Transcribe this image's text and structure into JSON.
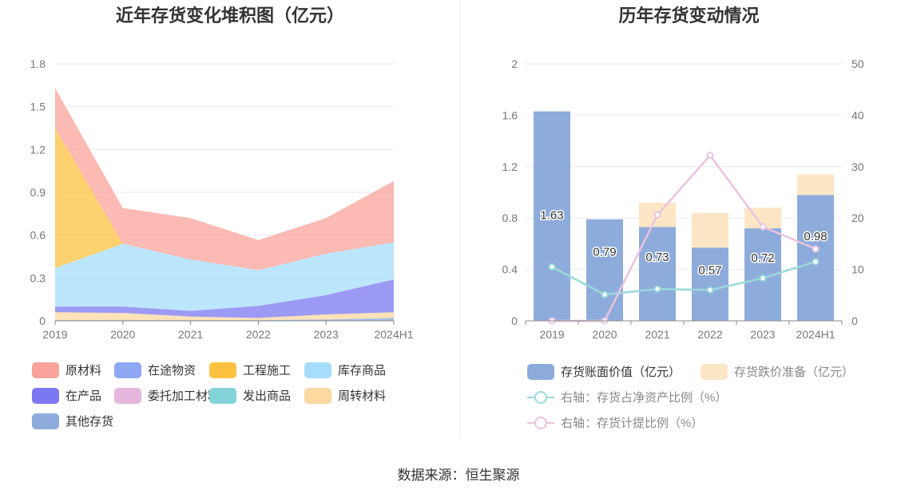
{
  "left_chart": {
    "title": "近年存货变化堆积图（亿元）",
    "legend": [
      {
        "name": "原材料",
        "color": "#f9a39a"
      },
      {
        "name": "在途物资",
        "color": "#8ea8f6"
      },
      {
        "name": "工程施工",
        "color": "#fcc23f"
      },
      {
        "name": "库存商品",
        "color": "#a6ddfb"
      },
      {
        "name": "在产品",
        "color": "#7c78f2"
      },
      {
        "name": "委托加工材料",
        "color": "#e7b6dd"
      },
      {
        "name": "发出商品",
        "color": "#82d4d8"
      },
      {
        "name": "周转材料",
        "color": "#fdd8a0"
      },
      {
        "name": "其他存货",
        "color": "#8eacdb"
      }
    ]
  },
  "right_chart": {
    "title": "历年存货变动情况",
    "legend": [
      {
        "name": "存货账面价值（亿元）",
        "color": "#8eacdb",
        "kind": "bar"
      },
      {
        "name": "存货跌价准备（亿元）",
        "color": "#fde6c6",
        "kind": "bar"
      },
      {
        "name": "右轴：存货占净资产比例（%）",
        "color": "#9ad9da",
        "kind": "line"
      },
      {
        "name": "右轴：存货计提比例（%）",
        "color": "#eac3df",
        "kind": "line"
      }
    ]
  },
  "source": "数据来源：恒生聚源",
  "chart_data": [
    {
      "type": "area",
      "stacked": true,
      "title": "近年存货变化堆积图（亿元）",
      "categories": [
        "2019",
        "2020",
        "2021",
        "2022",
        "2023",
        "2024H1"
      ],
      "ylim": [
        0,
        1.8
      ],
      "yticks": [
        "0",
        "0.3",
        "0.6",
        "0.9",
        "1.2",
        "1.5",
        "1.8"
      ],
      "grid": true,
      "legend_position": "bottom",
      "series": [
        {
          "name": "其他存货",
          "color": "#8eacdb",
          "values": [
            0.005,
            0.005,
            0.005,
            0.005,
            0.01,
            0.02
          ]
        },
        {
          "name": "周转材料",
          "color": "#fdd8a0",
          "values": [
            0.055,
            0.05,
            0.025,
            0.015,
            0.035,
            0.04
          ]
        },
        {
          "name": "发出商品",
          "color": "#82d4d8",
          "values": [
            0,
            0,
            0,
            0,
            0,
            0
          ]
        },
        {
          "name": "委托加工材料",
          "color": "#e7b6dd",
          "values": [
            0,
            0,
            0,
            0,
            0,
            0
          ]
        },
        {
          "name": "在产品",
          "color": "#7c78f2",
          "values": [
            0.04,
            0.045,
            0.04,
            0.085,
            0.135,
            0.23
          ]
        },
        {
          "name": "库存商品",
          "color": "#a6ddfb",
          "values": [
            0.27,
            0.44,
            0.36,
            0.25,
            0.29,
            0.26
          ]
        },
        {
          "name": "工程施工",
          "color": "#fcc23f",
          "values": [
            0.98,
            0,
            0,
            0,
            0,
            0
          ]
        },
        {
          "name": "在途物资",
          "color": "#8ea8f6",
          "values": [
            0,
            0,
            0,
            0,
            0,
            0
          ]
        },
        {
          "name": "原材料",
          "color": "#f9a39a",
          "values": [
            0.28,
            0.25,
            0.29,
            0.21,
            0.25,
            0.43
          ]
        }
      ]
    },
    {
      "type": "bar",
      "stacked": true,
      "title": "历年存货变动情况",
      "categories": [
        "2019",
        "2020",
        "2021",
        "2022",
        "2023",
        "2024H1"
      ],
      "ylim": [
        0,
        2
      ],
      "yticks": [
        "0",
        "0.4",
        "0.8",
        "1.2",
        "1.6",
        "2"
      ],
      "y2lim": [
        0,
        50
      ],
      "y2ticks": [
        "0",
        "10",
        "20",
        "30",
        "40",
        "50"
      ],
      "grid": true,
      "legend_position": "bottom",
      "series": [
        {
          "name": "存货账面价值（亿元）",
          "color": "#8eacdb",
          "axis": "left",
          "values": [
            1.63,
            0.79,
            0.73,
            0.57,
            0.72,
            0.98
          ],
          "labels": [
            "1.63",
            "0.79",
            "0.73",
            "0.57",
            "0.72",
            "0.98"
          ]
        },
        {
          "name": "存货跌价准备（亿元）",
          "color": "#fde6c6",
          "axis": "left",
          "values": [
            0,
            0,
            0.19,
            0.27,
            0.16,
            0.16
          ]
        },
        {
          "name": "右轴：存货占净资产比例（%）",
          "color": "#9ad9da",
          "type": "line",
          "axis": "right",
          "values": [
            10.5,
            5.1,
            6.2,
            6.0,
            8.3,
            11.5
          ]
        },
        {
          "name": "右轴：存货计提比例（%）",
          "color": "#eac3df",
          "type": "line",
          "axis": "right",
          "values": [
            0,
            0,
            20.6,
            32.2,
            18.3,
            14.0
          ]
        }
      ]
    }
  ]
}
